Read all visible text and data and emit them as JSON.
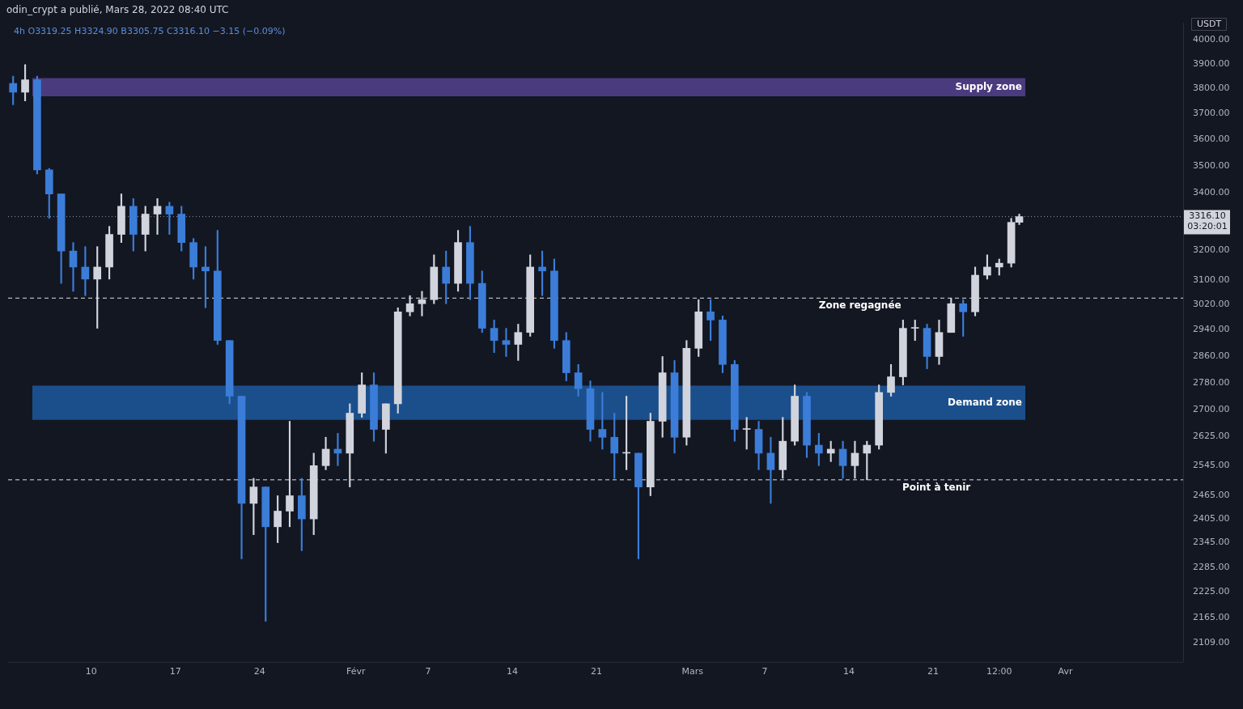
{
  "chart_data": {
    "type": "candlestick",
    "title": "odin_crypt a publié, Mars 28, 2022 08:40 UTC",
    "subtitle": "4h  O3319.25  H3324.90  B3305.75  C3316.10  −3.15 (−0.09%)",
    "ylabel": "USDT",
    "x": [
      "2022-01-03T12:00",
      "2022-01-04T12:00",
      "2022-01-05T12:00",
      "2022-01-06T12:00",
      "2022-01-07T12:00",
      "2022-01-08T12:00",
      "2022-01-09T12:00",
      "2022-01-10T12:00",
      "2022-01-11T12:00",
      "2022-01-12T12:00",
      "2022-01-13T12:00",
      "2022-01-14T12:00",
      "2022-01-15T12:00",
      "2022-01-16T12:00",
      "2022-01-17T12:00",
      "2022-01-18T12:00",
      "2022-01-19T12:00",
      "2022-01-20T12:00",
      "2022-01-21T12:00",
      "2022-01-22T12:00",
      "2022-01-23T12:00",
      "2022-01-24T12:00",
      "2022-01-25T12:00",
      "2022-01-26T12:00",
      "2022-01-27T12:00",
      "2022-01-28T12:00",
      "2022-01-29T12:00",
      "2022-01-30T12:00",
      "2022-01-31T12:00",
      "2022-02-01T12:00",
      "2022-02-02T12:00",
      "2022-02-03T12:00",
      "2022-02-04T12:00",
      "2022-02-05T12:00",
      "2022-02-06T12:00",
      "2022-02-07T12:00",
      "2022-02-08T12:00",
      "2022-02-09T12:00",
      "2022-02-10T12:00",
      "2022-02-11T12:00",
      "2022-02-12T12:00",
      "2022-02-13T12:00",
      "2022-02-14T12:00",
      "2022-02-15T12:00",
      "2022-02-16T12:00",
      "2022-02-17T12:00",
      "2022-02-18T12:00",
      "2022-02-19T12:00",
      "2022-02-20T12:00",
      "2022-02-21T12:00",
      "2022-02-22T12:00",
      "2022-02-23T12:00",
      "2022-02-24T12:00",
      "2022-02-25T12:00",
      "2022-02-26T12:00",
      "2022-02-27T12:00",
      "2022-02-28T12:00",
      "2022-03-01T12:00",
      "2022-03-02T12:00",
      "2022-03-03T12:00",
      "2022-03-04T12:00",
      "2022-03-05T12:00",
      "2022-03-06T12:00",
      "2022-03-07T12:00",
      "2022-03-08T12:00",
      "2022-03-09T12:00",
      "2022-03-10T12:00",
      "2022-03-11T12:00",
      "2022-03-12T12:00",
      "2022-03-13T12:00",
      "2022-03-14T12:00",
      "2022-03-15T12:00",
      "2022-03-16T12:00",
      "2022-03-17T12:00",
      "2022-03-18T12:00",
      "2022-03-19T12:00",
      "2022-03-20T12:00",
      "2022-03-21T12:00",
      "2022-03-22T12:00",
      "2022-03-23T12:00",
      "2022-03-24T12:00",
      "2022-03-25T12:00",
      "2022-03-26T12:00",
      "2022-03-27T12:00",
      "2022-03-28T04:00"
    ],
    "ohlc": [
      [
        3820,
        3850,
        3735,
        3785
      ],
      [
        3785,
        3897,
        3750,
        3835
      ],
      [
        3835,
        3850,
        3470,
        3485
      ],
      [
        3485,
        3490,
        3310,
        3397
      ],
      [
        3397,
        3397,
        3089,
        3197
      ],
      [
        3197,
        3226,
        3063,
        3143
      ],
      [
        3143,
        3212,
        3049,
        3103
      ],
      [
        3103,
        3212,
        2945,
        3143
      ],
      [
        3143,
        3282,
        3103,
        3254
      ],
      [
        3254,
        3397,
        3226,
        3353
      ],
      [
        3353,
        3380,
        3197,
        3254
      ],
      [
        3254,
        3353,
        3197,
        3325
      ],
      [
        3325,
        3380,
        3254,
        3353
      ],
      [
        3353,
        3367,
        3254,
        3325
      ],
      [
        3325,
        3353,
        3197,
        3226
      ],
      [
        3226,
        3240,
        3103,
        3143
      ],
      [
        3143,
        3212,
        3010,
        3130
      ],
      [
        3130,
        3268,
        2895,
        2907
      ],
      [
        2907,
        2907,
        2718,
        2740
      ],
      [
        2740,
        2740,
        2305,
        2445
      ],
      [
        2445,
        2511,
        2365,
        2488
      ],
      [
        2488,
        2488,
        2157,
        2385
      ],
      [
        2385,
        2465,
        2345,
        2425
      ],
      [
        2425,
        2668,
        2385,
        2465
      ],
      [
        2465,
        2511,
        2325,
        2405
      ],
      [
        2405,
        2579,
        2365,
        2545
      ],
      [
        2545,
        2623,
        2534,
        2590
      ],
      [
        2590,
        2634,
        2545,
        2579
      ],
      [
        2579,
        2718,
        2488,
        2691
      ],
      [
        2691,
        2809,
        2679,
        2773
      ],
      [
        2773,
        2809,
        2612,
        2645
      ],
      [
        2645,
        2718,
        2579,
        2718
      ],
      [
        2718,
        3010,
        2691,
        2997
      ],
      [
        2997,
        3049,
        2984,
        3023
      ],
      [
        3023,
        3063,
        2984,
        3036
      ],
      [
        3036,
        3184,
        3023,
        3143
      ],
      [
        3143,
        3197,
        3023,
        3089
      ],
      [
        3089,
        3268,
        3063,
        3226
      ],
      [
        3226,
        3282,
        3036,
        3089
      ],
      [
        3089,
        3130,
        2932,
        2945
      ],
      [
        2945,
        2971,
        2870,
        2907
      ],
      [
        2907,
        2945,
        2858,
        2895
      ],
      [
        2895,
        2958,
        2846,
        2932
      ],
      [
        2932,
        3184,
        2920,
        3143
      ],
      [
        3143,
        3197,
        3049,
        3130
      ],
      [
        3130,
        3170,
        2883,
        2907
      ],
      [
        2907,
        2932,
        2785,
        2809
      ],
      [
        2809,
        2834,
        2740,
        2762
      ],
      [
        2762,
        2785,
        2612,
        2645
      ],
      [
        2645,
        2751,
        2590,
        2623
      ],
      [
        2623,
        2691,
        2511,
        2579
      ],
      [
        2579,
        2740,
        2534,
        2579
      ],
      [
        2579,
        2579,
        2305,
        2488
      ],
      [
        2488,
        2691,
        2465,
        2668
      ],
      [
        2668,
        2858,
        2623,
        2809
      ],
      [
        2809,
        2846,
        2579,
        2623
      ],
      [
        2623,
        2907,
        2601,
        2883
      ],
      [
        2883,
        3036,
        2858,
        2997
      ],
      [
        2997,
        3036,
        2907,
        2971
      ],
      [
        2971,
        2984,
        2809,
        2834
      ],
      [
        2834,
        2846,
        2612,
        2645
      ],
      [
        2645,
        2679,
        2590,
        2645
      ],
      [
        2645,
        2668,
        2534,
        2579
      ],
      [
        2579,
        2623,
        2445,
        2534
      ],
      [
        2534,
        2679,
        2511,
        2612
      ],
      [
        2612,
        2773,
        2601,
        2740
      ],
      [
        2740,
        2751,
        2567,
        2601
      ],
      [
        2601,
        2634,
        2545,
        2579
      ],
      [
        2579,
        2612,
        2556,
        2590
      ],
      [
        2590,
        2612,
        2511,
        2545
      ],
      [
        2545,
        2612,
        2511,
        2579
      ],
      [
        2579,
        2612,
        2507,
        2601
      ],
      [
        2601,
        2773,
        2590,
        2751
      ],
      [
        2751,
        2834,
        2740,
        2797
      ],
      [
        2797,
        2971,
        2773,
        2945
      ],
      [
        2945,
        2971,
        2907,
        2945
      ],
      [
        2945,
        2958,
        2821,
        2858
      ],
      [
        2858,
        2971,
        2834,
        2932
      ],
      [
        2932,
        3041,
        2932,
        3023
      ],
      [
        3023,
        3036,
        2920,
        2997
      ],
      [
        2997,
        3143,
        2984,
        3116
      ],
      [
        3116,
        3184,
        3103,
        3143
      ],
      [
        3143,
        3170,
        3116,
        3156
      ],
      [
        3156,
        3310,
        3143,
        3296
      ],
      [
        3296,
        3325,
        3288,
        3316.1
      ]
    ],
    "colors": [
      "#3b7dd8",
      "#d1d4dc",
      "#3b7dd8",
      "#3b7dd8",
      "#3b7dd8",
      "#3b7dd8",
      "#3b7dd8",
      "#d1d4dc",
      "#d1d4dc",
      "#d1d4dc",
      "#3b7dd8",
      "#d1d4dc",
      "#d1d4dc",
      "#3b7dd8",
      "#3b7dd8",
      "#3b7dd8",
      "#3b7dd8",
      "#3b7dd8",
      "#3b7dd8",
      "#3b7dd8",
      "#d1d4dc",
      "#3b7dd8",
      "#d1d4dc",
      "#d1d4dc",
      "#3b7dd8",
      "#d1d4dc",
      "#d1d4dc",
      "#3b7dd8",
      "#d1d4dc",
      "#d1d4dc",
      "#3b7dd8",
      "#d1d4dc",
      "#d1d4dc",
      "#d1d4dc",
      "#d1d4dc",
      "#d1d4dc",
      "#3b7dd8",
      "#d1d4dc",
      "#3b7dd8",
      "#3b7dd8",
      "#3b7dd8",
      "#3b7dd8",
      "#d1d4dc",
      "#d1d4dc",
      "#3b7dd8",
      "#3b7dd8",
      "#3b7dd8",
      "#3b7dd8",
      "#3b7dd8",
      "#3b7dd8",
      "#3b7dd8",
      "#d1d4dc",
      "#3b7dd8",
      "#d1d4dc",
      "#d1d4dc",
      "#3b7dd8",
      "#d1d4dc",
      "#d1d4dc",
      "#3b7dd8",
      "#3b7dd8",
      "#3b7dd8",
      "#d1d4dc",
      "#3b7dd8",
      "#3b7dd8",
      "#d1d4dc",
      "#d1d4dc",
      "#3b7dd8",
      "#3b7dd8",
      "#d1d4dc",
      "#3b7dd8",
      "#d1d4dc",
      "#d1d4dc",
      "#d1d4dc",
      "#d1d4dc",
      "#d1d4dc",
      "#d1d4dc",
      "#3b7dd8",
      "#d1d4dc",
      "#d1d4dc",
      "#3b7dd8",
      "#d1d4dc",
      "#d1d4dc",
      "#d1d4dc",
      "#d1d4dc",
      "#d1d4dc"
    ],
    "xlim": [
      "2022-01-03T02:00",
      "2022-04-10T19:00"
    ],
    "xticks": [
      {
        "value": "2022-01-10",
        "label": "10"
      },
      {
        "value": "2022-01-17",
        "label": "17"
      },
      {
        "value": "2022-01-24",
        "label": "24"
      },
      {
        "value": "2022-02-01",
        "label": "Févr"
      },
      {
        "value": "2022-02-07",
        "label": "7"
      },
      {
        "value": "2022-02-14",
        "label": "14"
      },
      {
        "value": "2022-02-21",
        "label": "21"
      },
      {
        "value": "2022-03-01",
        "label": "Mars"
      },
      {
        "value": "2022-03-07",
        "label": "7"
      },
      {
        "value": "2022-03-14",
        "label": "14"
      },
      {
        "value": "2022-03-21",
        "label": "21"
      },
      {
        "value": "2022-03-26T12:00",
        "label": "12:00"
      },
      {
        "value": "2022-04-01",
        "label": "Avr"
      }
    ],
    "log": "y",
    "ylim": [
      2066,
      4075
    ],
    "yticks": [
      {
        "value": 2109,
        "label": "2109.00"
      },
      {
        "value": 2165,
        "label": "2165.00"
      },
      {
        "value": 2225,
        "label": "2225.00"
      },
      {
        "value": 2285,
        "label": "2285.00"
      },
      {
        "value": 2345,
        "label": "2345.00"
      },
      {
        "value": 2405,
        "label": "2405.00"
      },
      {
        "value": 2465,
        "label": "2465.00"
      },
      {
        "value": 2545,
        "label": "2545.00"
      },
      {
        "value": 2625,
        "label": "2625.00"
      },
      {
        "value": 2700,
        "label": "2700.00"
      },
      {
        "value": 2780,
        "label": "2780.00"
      },
      {
        "value": 2860,
        "label": "2860.00"
      },
      {
        "value": 2940,
        "label": "2940.00"
      },
      {
        "value": 3020,
        "label": "3020.00"
      },
      {
        "value": 3100,
        "label": "3100.00"
      },
      {
        "value": 3200,
        "label": "3200.00"
      },
      {
        "value": 3400,
        "label": "3400.00"
      },
      {
        "value": 3500,
        "label": "3500.00"
      },
      {
        "value": 3600,
        "label": "3600.00"
      },
      {
        "value": 3700,
        "label": "3700.00"
      },
      {
        "value": 3800,
        "label": "3800.00"
      },
      {
        "value": 3900,
        "label": "3900.00"
      },
      {
        "value": 4000,
        "label": "4000.00"
      }
    ],
    "bands": [
      {
        "axis": "y",
        "from": 3768,
        "to": 3842,
        "label": "Supply zone",
        "color": "#4a3b7e"
      },
      {
        "axis": "y",
        "from": 2672,
        "to": 2771,
        "label": "Demand zone",
        "color": "#1b4f8c"
      }
    ],
    "ref_lines": [
      {
        "axis": "y",
        "value": 3041,
        "label": "Zone regagnée",
        "color": "#e0e0e0",
        "line_style": "dashed"
      },
      {
        "axis": "y",
        "value": 2507,
        "label": "Point à tenir",
        "color": "#e0e0e0",
        "line_style": "dashed"
      },
      {
        "axis": "y",
        "value": 3316.1,
        "label": "3316.10",
        "color": "#9598a1",
        "line_style": "dotted"
      }
    ],
    "annotations": [
      "03:20:01"
    ],
    "legend": false
  }
}
